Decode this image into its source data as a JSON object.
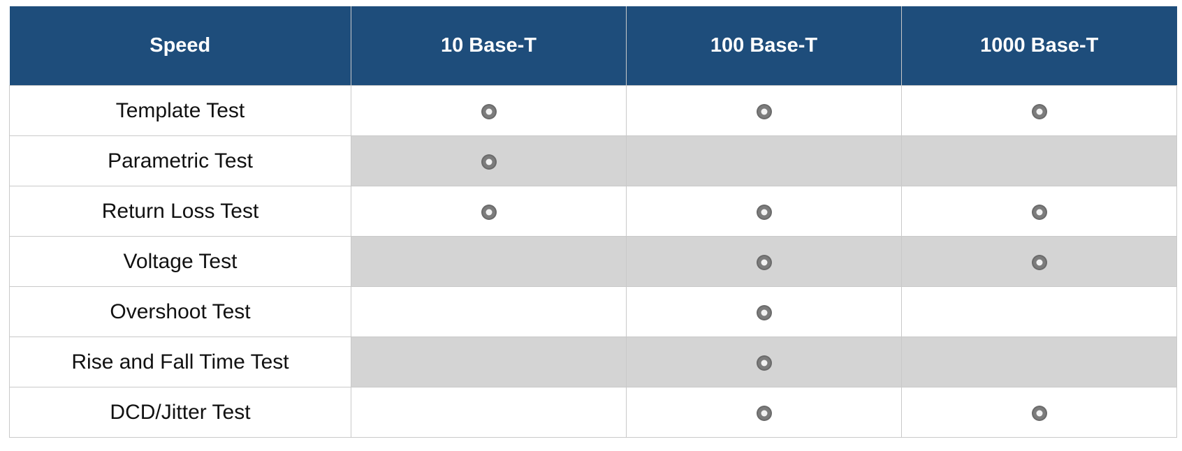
{
  "table": {
    "header": [
      "Speed",
      "10 Base-T",
      "100 Base-T",
      "1000 Base-T"
    ],
    "rows": [
      {
        "label": "Template Test",
        "supported": [
          true,
          true,
          true
        ]
      },
      {
        "label": "Parametric Test",
        "supported": [
          true,
          false,
          false
        ]
      },
      {
        "label": "Return Loss Test",
        "supported": [
          true,
          true,
          true
        ]
      },
      {
        "label": "Voltage Test",
        "supported": [
          false,
          true,
          true
        ]
      },
      {
        "label": "Overshoot Test",
        "supported": [
          false,
          true,
          false
        ]
      },
      {
        "label": "Rise and Fall Time Test",
        "supported": [
          false,
          true,
          false
        ]
      },
      {
        "label": "DCD/Jitter Test",
        "supported": [
          false,
          true,
          true
        ]
      }
    ]
  }
}
